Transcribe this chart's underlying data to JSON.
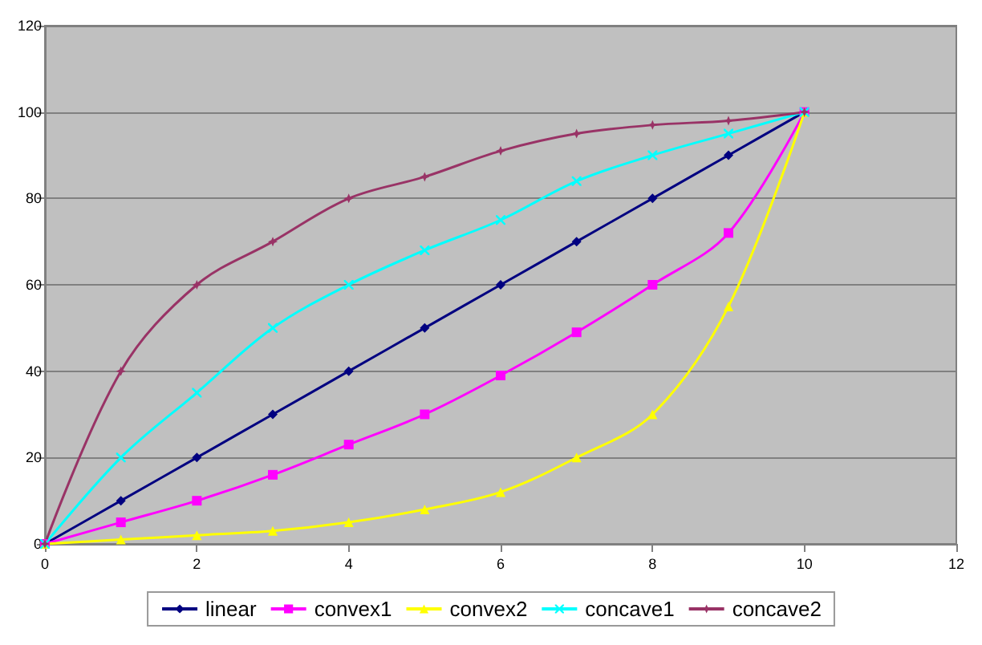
{
  "chart_data": {
    "type": "line",
    "x": [
      0,
      1,
      2,
      3,
      4,
      5,
      6,
      7,
      8,
      9,
      10
    ],
    "xlim": [
      0,
      12
    ],
    "xticks": [
      0,
      2,
      4,
      6,
      8,
      10,
      12
    ],
    "ylim": [
      0,
      120
    ],
    "yticks": [
      0,
      20,
      40,
      60,
      80,
      100,
      120
    ],
    "grid": "y",
    "legend": "bottom",
    "series": [
      {
        "name": "linear",
        "color": "#000080",
        "marker": "diamond",
        "values": [
          0,
          10,
          20,
          30,
          40,
          50,
          60,
          70,
          80,
          90,
          100
        ]
      },
      {
        "name": "convex1",
        "color": "#ff00ff",
        "marker": "square",
        "values": [
          0,
          5,
          10,
          16,
          23,
          30,
          39,
          49,
          60,
          72,
          100
        ]
      },
      {
        "name": "convex2",
        "color": "#ffff00",
        "marker": "triangle",
        "values": [
          0,
          1,
          2,
          3,
          5,
          8,
          12,
          20,
          30,
          55,
          100
        ]
      },
      {
        "name": "concave1",
        "color": "#00ffff",
        "marker": "cross",
        "values": [
          0,
          20,
          35,
          50,
          60,
          68,
          75,
          84,
          90,
          95,
          100
        ]
      },
      {
        "name": "concave2",
        "color": "#993366",
        "marker": "star",
        "values": [
          0,
          40,
          60,
          70,
          80,
          85,
          91,
          95,
          97,
          98,
          100
        ]
      }
    ]
  }
}
